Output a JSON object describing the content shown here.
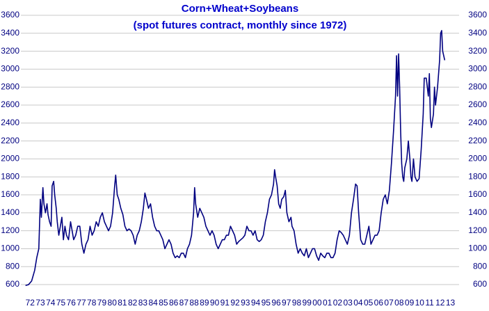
{
  "chart_data": {
    "type": "line",
    "title": "Corn+Wheat+Soybeans",
    "subtitle": "(spot futures contract, monthly since 1972)",
    "grid": true,
    "ylim": [
      550,
      3600
    ],
    "yticks": [
      600,
      800,
      1000,
      1200,
      1400,
      1600,
      1800,
      2000,
      2200,
      2400,
      2600,
      2800,
      3000,
      3200,
      3400,
      3600
    ],
    "xlim": [
      1971.55,
      2014.3
    ],
    "xticks": [
      {
        "value": 1972,
        "label": "72"
      },
      {
        "value": 1973,
        "label": "73"
      },
      {
        "value": 1974,
        "label": "74"
      },
      {
        "value": 1975,
        "label": "75"
      },
      {
        "value": 1976,
        "label": "76"
      },
      {
        "value": 1977,
        "label": "77"
      },
      {
        "value": 1978,
        "label": "78"
      },
      {
        "value": 1979,
        "label": "79"
      },
      {
        "value": 1980,
        "label": "80"
      },
      {
        "value": 1981,
        "label": "81"
      },
      {
        "value": 1982,
        "label": "82"
      },
      {
        "value": 1983,
        "label": "83"
      },
      {
        "value": 1984,
        "label": "84"
      },
      {
        "value": 1985,
        "label": "85"
      },
      {
        "value": 1986,
        "label": "86"
      },
      {
        "value": 1987,
        "label": "87"
      },
      {
        "value": 1988,
        "label": "88"
      },
      {
        "value": 1989,
        "label": "89"
      },
      {
        "value": 1990,
        "label": "90"
      },
      {
        "value": 1991,
        "label": "91"
      },
      {
        "value": 1992,
        "label": "92"
      },
      {
        "value": 1993,
        "label": "93"
      },
      {
        "value": 1994,
        "label": "94"
      },
      {
        "value": 1995,
        "label": "95"
      },
      {
        "value": 1996,
        "label": "96"
      },
      {
        "value": 1997,
        "label": "97"
      },
      {
        "value": 1998,
        "label": "98"
      },
      {
        "value": 1999,
        "label": "99"
      },
      {
        "value": 2000,
        "label": "00"
      },
      {
        "value": 2001,
        "label": "01"
      },
      {
        "value": 2002,
        "label": "02"
      },
      {
        "value": 2003,
        "label": "03"
      },
      {
        "value": 2004,
        "label": "04"
      },
      {
        "value": 2005,
        "label": "05"
      },
      {
        "value": 2006,
        "label": "06"
      },
      {
        "value": 2007,
        "label": "07"
      },
      {
        "value": 2008,
        "label": "08"
      },
      {
        "value": 2009,
        "label": "09"
      },
      {
        "value": 2010,
        "label": "10"
      },
      {
        "value": 2011,
        "label": "11"
      },
      {
        "value": 2012,
        "label": "12"
      },
      {
        "value": 2013,
        "label": "13"
      }
    ],
    "color": "#000080",
    "x": [
      1972.0,
      1972.3,
      1972.6,
      1972.9,
      1973.1,
      1973.3,
      1973.45,
      1973.55,
      1973.7,
      1973.8,
      1973.95,
      1974.1,
      1974.2,
      1974.35,
      1974.5,
      1974.6,
      1974.75,
      1974.85,
      1975.0,
      1975.1,
      1975.25,
      1975.4,
      1975.55,
      1975.7,
      1975.85,
      1976.0,
      1976.2,
      1976.4,
      1976.55,
      1976.7,
      1976.9,
      1977.1,
      1977.3,
      1977.5,
      1977.7,
      1977.9,
      1978.1,
      1978.3,
      1978.5,
      1978.7,
      1978.9,
      1979.1,
      1979.3,
      1979.5,
      1979.7,
      1979.9,
      1980.1,
      1980.3,
      1980.5,
      1980.7,
      1980.8,
      1980.95,
      1981.1,
      1981.3,
      1981.5,
      1981.7,
      1981.9,
      1982.1,
      1982.3,
      1982.5,
      1982.7,
      1982.9,
      1983.1,
      1983.3,
      1983.5,
      1983.65,
      1983.8,
      1984.0,
      1984.2,
      1984.4,
      1984.6,
      1984.8,
      1985.0,
      1985.2,
      1985.4,
      1985.6,
      1985.8,
      1986.0,
      1986.2,
      1986.4,
      1986.6,
      1986.8,
      1987.0,
      1987.2,
      1987.4,
      1987.6,
      1987.8,
      1988.0,
      1988.2,
      1988.4,
      1988.5,
      1988.6,
      1988.8,
      1989.0,
      1989.2,
      1989.4,
      1989.6,
      1989.8,
      1990.0,
      1990.2,
      1990.4,
      1990.6,
      1990.8,
      1991.0,
      1991.2,
      1991.4,
      1991.6,
      1991.8,
      1992.0,
      1992.2,
      1992.4,
      1992.6,
      1992.8,
      1993.0,
      1993.2,
      1993.4,
      1993.6,
      1993.8,
      1994.0,
      1994.2,
      1994.4,
      1994.6,
      1994.8,
      1995.0,
      1995.2,
      1995.4,
      1995.6,
      1995.8,
      1996.0,
      1996.2,
      1996.3,
      1996.4,
      1996.55,
      1996.7,
      1996.85,
      1997.0,
      1997.2,
      1997.35,
      1997.5,
      1997.7,
      1997.9,
      1998.0,
      1998.2,
      1998.4,
      1998.6,
      1998.8,
      1999.0,
      1999.2,
      1999.4,
      1999.6,
      1999.8,
      2000.0,
      2000.2,
      2000.4,
      2000.6,
      2000.8,
      2001.0,
      2001.2,
      2001.4,
      2001.6,
      2001.8,
      2002.0,
      2002.2,
      2002.4,
      2002.6,
      2002.8,
      2003.0,
      2003.2,
      2003.4,
      2003.6,
      2003.8,
      2004.0,
      2004.2,
      2004.35,
      2004.5,
      2004.7,
      2004.9,
      2005.1,
      2005.3,
      2005.5,
      2005.7,
      2005.9,
      2006.1,
      2006.3,
      2006.5,
      2006.7,
      2006.9,
      2007.1,
      2007.3,
      2007.5,
      2007.7,
      2007.9,
      2008.1,
      2008.2,
      2008.3,
      2008.4,
      2008.5,
      2008.6,
      2008.7,
      2008.8,
      2008.9,
      2009.0,
      2009.2,
      2009.35,
      2009.5,
      2009.6,
      2009.7,
      2009.85,
      2010.0,
      2010.2,
      2010.4,
      2010.6,
      2010.8,
      2010.9,
      2011.1,
      2011.3,
      2011.4,
      2011.5,
      2011.6,
      2011.8,
      2011.9,
      2012.0,
      2012.2,
      2012.4,
      2012.5,
      2012.6,
      2012.7,
      2012.8,
      2012.9
    ],
    "values": [
      590,
      600,
      640,
      760,
      900,
      1000,
      1550,
      1350,
      1680,
      1500,
      1400,
      1500,
      1380,
      1300,
      1250,
      1700,
      1750,
      1600,
      1450,
      1300,
      1150,
      1250,
      1350,
      1100,
      1250,
      1150,
      1100,
      1300,
      1200,
      1100,
      1150,
      1250,
      1250,
      1050,
      950,
      1050,
      1100,
      1250,
      1150,
      1200,
      1300,
      1250,
      1350,
      1400,
      1300,
      1250,
      1200,
      1250,
      1400,
      1700,
      1820,
      1600,
      1550,
      1450,
      1380,
      1250,
      1200,
      1220,
      1200,
      1150,
      1050,
      1150,
      1200,
      1300,
      1450,
      1620,
      1550,
      1450,
      1500,
      1350,
      1250,
      1200,
      1200,
      1150,
      1100,
      1000,
      1050,
      1100,
      1050,
      950,
      900,
      920,
      900,
      950,
      950,
      900,
      1000,
      1050,
      1150,
      1400,
      1680,
      1500,
      1350,
      1450,
      1400,
      1350,
      1250,
      1200,
      1150,
      1200,
      1150,
      1050,
      1000,
      1050,
      1100,
      1100,
      1150,
      1150,
      1250,
      1200,
      1150,
      1050,
      1080,
      1100,
      1120,
      1150,
      1250,
      1200,
      1200,
      1150,
      1200,
      1100,
      1080,
      1100,
      1150,
      1300,
      1400,
      1550,
      1600,
      1720,
      1880,
      1800,
      1700,
      1500,
      1450,
      1550,
      1580,
      1650,
      1400,
      1300,
      1350,
      1250,
      1200,
      1050,
      950,
      1000,
      950,
      920,
      1000,
      900,
      950,
      1000,
      1000,
      920,
      870,
      950,
      920,
      900,
      950,
      950,
      900,
      900,
      950,
      1100,
      1200,
      1180,
      1150,
      1100,
      1050,
      1150,
      1400,
      1550,
      1720,
      1700,
      1400,
      1100,
      1050,
      1050,
      1150,
      1250,
      1050,
      1100,
      1150,
      1150,
      1200,
      1400,
      1550,
      1600,
      1500,
      1650,
      1950,
      2300,
      2700,
      3150,
      2700,
      3170,
      2800,
      2300,
      1950,
      1800,
      1750,
      1900,
      2000,
      2200,
      2000,
      1800,
      1750,
      2000,
      1800,
      1750,
      1780,
      2100,
      2500,
      2900,
      2900,
      2700,
      2950,
      2450,
      2350,
      2500,
      2800,
      2600,
      2800,
      3100,
      3400,
      3430,
      3200,
      3150,
      3100
    ]
  }
}
